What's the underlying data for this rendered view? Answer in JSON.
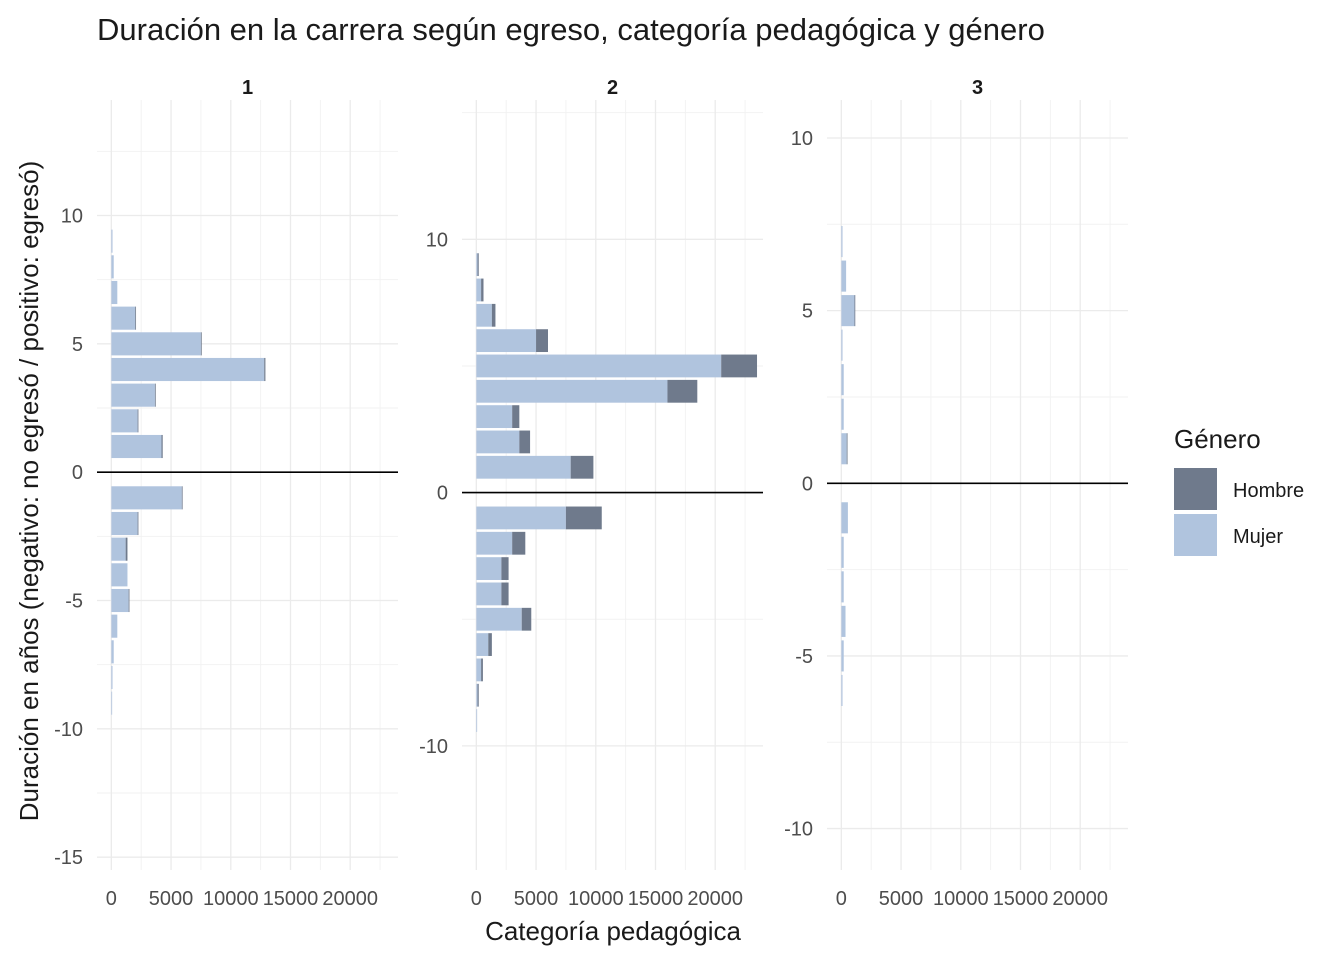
{
  "chart_data": {
    "type": "bar",
    "orientation": "horizontal",
    "stacked": true,
    "title": "Duración en la carrera según egreso, categoría pedagógica y género",
    "xlabel": "Categoría pedagógica",
    "ylabel": "Duración en años (negativo: no egresó / positivo: egresó)",
    "x_ticks": [
      0,
      5000,
      10000,
      15000,
      20000
    ],
    "x_tick_labels": [
      "0",
      "5000",
      "10000",
      "15000",
      "20000"
    ],
    "xlim": [
      -1200,
      24000
    ],
    "grid": true,
    "legend": {
      "title": "Género",
      "position": "right",
      "entries": [
        {
          "key": "Hombre",
          "label": "Hombre",
          "color": "#6f7a8c"
        },
        {
          "key": "Mujer",
          "label": "Mujer",
          "color": "#b0c4de"
        }
      ]
    },
    "series_colors": {
      "Hombre": "#6f7a8c",
      "Mujer": "#b0c4de"
    },
    "panels": [
      {
        "label": "1",
        "ylim": [
          -15.5,
          14.5
        ],
        "y_ticks": [
          -15,
          -10,
          -5,
          0,
          5,
          10
        ],
        "y_tick_labels": [
          "-15",
          "-10",
          "-5",
          "0",
          "5",
          "10"
        ],
        "bars": [
          {
            "y": 9,
            "Mujer": 100,
            "Hombre": 0
          },
          {
            "y": 8,
            "Mujer": 200,
            "Hombre": 0
          },
          {
            "y": 7,
            "Mujer": 500,
            "Hombre": 0
          },
          {
            "y": 6,
            "Mujer": 2000,
            "Hombre": 50
          },
          {
            "y": 5,
            "Mujer": 7500,
            "Hombre": 50
          },
          {
            "y": 4,
            "Mujer": 12800,
            "Hombre": 100
          },
          {
            "y": 3,
            "Mujer": 3650,
            "Hombre": 50
          },
          {
            "y": 2,
            "Mujer": 2200,
            "Hombre": 50
          },
          {
            "y": 1,
            "Mujer": 4200,
            "Hombre": 100
          },
          {
            "y": -1,
            "Mujer": 5900,
            "Hombre": 50
          },
          {
            "y": -2,
            "Mujer": 2200,
            "Hombre": 50
          },
          {
            "y": -3,
            "Mujer": 1200,
            "Hombre": 150
          },
          {
            "y": -4,
            "Mujer": 1350,
            "Hombre": 0
          },
          {
            "y": -5,
            "Mujer": 1450,
            "Hombre": 50
          },
          {
            "y": -6,
            "Mujer": 500,
            "Hombre": 0
          },
          {
            "y": -7,
            "Mujer": 200,
            "Hombre": 0
          },
          {
            "y": -8,
            "Mujer": 100,
            "Hombre": 0
          },
          {
            "y": -9,
            "Mujer": 50,
            "Hombre": 0
          }
        ]
      },
      {
        "label": "2",
        "ylim": [
          -14.9,
          15.5
        ],
        "y_ticks": [
          -10,
          0,
          10
        ],
        "y_tick_labels": [
          "-10",
          "0",
          "10"
        ],
        "bars": [
          {
            "y": 9,
            "Mujer": 100,
            "Hombre": 100
          },
          {
            "y": 8,
            "Mujer": 400,
            "Hombre": 200
          },
          {
            "y": 7,
            "Mujer": 1300,
            "Hombre": 300
          },
          {
            "y": 6,
            "Mujer": 5000,
            "Hombre": 1000
          },
          {
            "y": 5,
            "Mujer": 20500,
            "Hombre": 3000
          },
          {
            "y": 4,
            "Mujer": 16000,
            "Hombre": 2500
          },
          {
            "y": 3,
            "Mujer": 3000,
            "Hombre": 600
          },
          {
            "y": 2,
            "Mujer": 3600,
            "Hombre": 900
          },
          {
            "y": 1,
            "Mujer": 7900,
            "Hombre": 1900
          },
          {
            "y": -1,
            "Mujer": 7500,
            "Hombre": 3000
          },
          {
            "y": -2,
            "Mujer": 3000,
            "Hombre": 1100
          },
          {
            "y": -3,
            "Mujer": 2100,
            "Hombre": 600
          },
          {
            "y": -4,
            "Mujer": 2100,
            "Hombre": 600
          },
          {
            "y": -5,
            "Mujer": 3800,
            "Hombre": 800
          },
          {
            "y": -6,
            "Mujer": 1000,
            "Hombre": 300
          },
          {
            "y": -7,
            "Mujer": 400,
            "Hombre": 150
          },
          {
            "y": -8,
            "Mujer": 100,
            "Hombre": 100
          },
          {
            "y": -9,
            "Mujer": 50,
            "Hombre": 0
          }
        ]
      },
      {
        "label": "3",
        "ylim": [
          -11.2,
          11.1
        ],
        "y_ticks": [
          -10,
          -5,
          0,
          5,
          10
        ],
        "y_tick_labels": [
          "-10",
          "-5",
          "0",
          "5",
          "10"
        ],
        "bars": [
          {
            "y": 7,
            "Mujer": 100,
            "Hombre": 0
          },
          {
            "y": 6,
            "Mujer": 400,
            "Hombre": 0
          },
          {
            "y": 5,
            "Mujer": 1100,
            "Hombre": 50
          },
          {
            "y": 4,
            "Mujer": 100,
            "Hombre": 0
          },
          {
            "y": 3,
            "Mujer": 200,
            "Hombre": 0
          },
          {
            "y": 2,
            "Mujer": 200,
            "Hombre": 0
          },
          {
            "y": 1,
            "Mujer": 450,
            "Hombre": 50
          },
          {
            "y": -1,
            "Mujer": 550,
            "Hombre": 0
          },
          {
            "y": -2,
            "Mujer": 200,
            "Hombre": 0
          },
          {
            "y": -3,
            "Mujer": 200,
            "Hombre": 0
          },
          {
            "y": -4,
            "Mujer": 350,
            "Hombre": 0
          },
          {
            "y": -5,
            "Mujer": 200,
            "Hombre": 0
          },
          {
            "y": -6,
            "Mujer": 100,
            "Hombre": 0
          }
        ]
      }
    ]
  }
}
